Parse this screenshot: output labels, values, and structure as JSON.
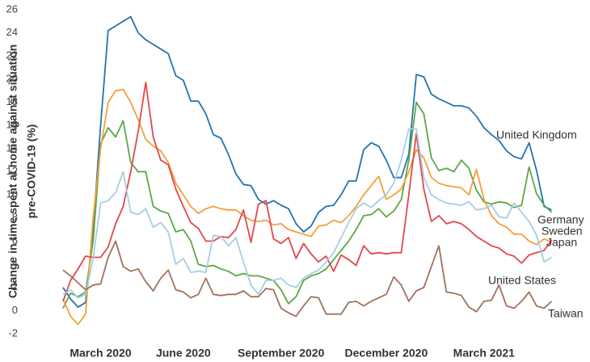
{
  "chart_data": {
    "type": "line",
    "y_label": [
      "Change in time spent at home against situation",
      "pre-COVID-19 (%)"
    ],
    "categories": [
      null,
      null,
      null,
      null,
      null,
      "March 2020",
      null,
      null,
      null,
      null,
      null,
      null,
      null,
      null,
      null,
      null,
      "June 2020",
      null,
      null,
      null,
      null,
      null,
      null,
      null,
      null,
      null,
      null,
      null,
      null,
      "September 2020",
      null,
      null,
      null,
      null,
      null,
      null,
      null,
      null,
      null,
      null,
      null,
      null,
      null,
      "December 2020",
      null,
      null,
      null,
      null,
      null,
      null,
      null,
      null,
      null,
      null,
      null,
      null,
      "March 2021",
      null,
      null,
      null,
      null,
      null,
      null,
      null,
      null,
      null
    ],
    "ylim": [
      -2.6,
      26.4
    ],
    "yticks": [
      -2,
      0,
      2,
      4,
      6,
      8,
      10,
      12,
      14,
      16,
      18,
      20,
      22,
      24,
      26
    ],
    "grid": false,
    "series": [
      {
        "name": "United Kingdom",
        "color": "#2474b0",
        "values": [
          2.0,
          1.0,
          0.3,
          0.7,
          7,
          16,
          24.2,
          24.6,
          25.0,
          25.4,
          24,
          23.4,
          23,
          22.6,
          22.2,
          20.3,
          19.9,
          18.1,
          18.1,
          17,
          15.2,
          14.9,
          13.5,
          11.8,
          10.9,
          10.8,
          9.6,
          9.2,
          9.5,
          9.1,
          8.8,
          7.5,
          6.8,
          7.3,
          8.5,
          9,
          9.1,
          10,
          11.2,
          11.2,
          13.9,
          14.5,
          14.2,
          13,
          11.5,
          11.5,
          13.5,
          20.4,
          20.2,
          18.7,
          18.3,
          18,
          17.7,
          17.7,
          17.5,
          16.8,
          15.8,
          15.2,
          14.7,
          13.8,
          13.3,
          13.1,
          14.5,
          12.1,
          9,
          8.7
        ]
      },
      {
        "name": "Germany",
        "color": "#5aa846",
        "values": [
          0.2,
          1.5,
          1.2,
          1.6,
          6,
          14.4,
          15.8,
          15,
          16.4,
          12.8,
          12,
          12,
          9,
          8.6,
          8.4,
          6.8,
          7,
          6,
          4,
          3.8,
          3.9,
          3.6,
          3.4,
          3,
          3.2,
          3,
          3,
          2.8,
          2.6,
          1.8,
          0.6,
          1.2,
          2.6,
          3,
          3.2,
          3.6,
          4.4,
          5.2,
          6,
          7,
          8.2,
          8.3,
          8.8,
          8.1,
          8.6,
          9.6,
          13,
          18,
          17,
          13.2,
          12.1,
          12.3,
          12,
          13,
          12.3,
          10.4,
          9.4,
          9.2,
          9.4,
          9.3,
          8.9,
          9.1,
          12.4,
          10.1,
          9.1,
          8.5
        ]
      },
      {
        "name": "Sweden",
        "color": "#f59f3a",
        "values": [
          1,
          -0.5,
          -1.2,
          -0.3,
          8,
          14,
          18,
          19,
          19.1,
          18,
          16.5,
          14.8,
          14.2,
          13.8,
          12.8,
          11,
          10,
          9,
          8.4,
          8.8,
          9,
          8.8,
          8.7,
          8.7,
          8.2,
          7.8,
          7.7,
          7.8,
          7.4,
          7.5,
          7,
          6.8,
          6.6,
          6.4,
          7.3,
          7.4,
          7.8,
          7.6,
          8.2,
          9,
          10,
          10.8,
          11.6,
          9.6,
          10,
          10.5,
          12,
          13.9,
          13.2,
          11.5,
          11,
          10.8,
          10.7,
          10.6,
          10,
          12.2,
          9.6,
          8.2,
          7.5,
          7.2,
          6.6,
          6.6,
          6,
          5.7,
          6.2,
          5.9
        ]
      },
      {
        "name": "Japan",
        "color": "#e2474a",
        "values": [
          0.8,
          2.6,
          3.6,
          4.7,
          4.6,
          4.6,
          5.5,
          7.5,
          9,
          12,
          15.5,
          19.7,
          15,
          13,
          12.6,
          10.5,
          9,
          7.6,
          7.1,
          6,
          6,
          6.4,
          6.3,
          7,
          8.7,
          5.9,
          9.2,
          9.5,
          6.2,
          5.8,
          6.3,
          4.5,
          5.8,
          4.9,
          4.2,
          4.7,
          3.4,
          4.8,
          4.4,
          3.9,
          5.6,
          4.9,
          5,
          4.9,
          5,
          5,
          10,
          15.3,
          10.5,
          7.7,
          8.2,
          7.5,
          7.7,
          7.5,
          7,
          6.4,
          6,
          5.6,
          5.4,
          4.9,
          4.7,
          4.1,
          4.8,
          5,
          5.2,
          6.1
        ]
      },
      {
        "name": "United States",
        "color": "#a7cde6",
        "values": [
          1.4,
          1.8,
          1.1,
          1.4,
          4.5,
          9.3,
          9.5,
          10.2,
          12,
          8.5,
          8.3,
          8.8,
          7.2,
          7.6,
          6.8,
          4,
          4.5,
          3.3,
          3.4,
          3.3,
          6.5,
          6.4,
          5.6,
          6.3,
          4.2,
          2.2,
          1.4,
          2.6,
          2.6,
          2.8,
          2.2,
          2,
          2.8,
          3.2,
          3.5,
          4.2,
          5,
          6.3,
          7.6,
          8.8,
          9.3,
          8.9,
          9.5,
          10,
          11,
          13,
          15.7,
          15.7,
          11.5,
          10,
          9.6,
          9.3,
          9.2,
          9.1,
          9.4,
          8.7,
          8.8,
          9.1,
          8.1,
          8,
          9.3,
          8.5,
          7.7,
          6.5,
          4.2,
          4.6
        ]
      },
      {
        "name": "Taiwan",
        "color": "#a0725a",
        "values": [
          3.5,
          3,
          2.4,
          1.8,
          2.2,
          2.3,
          4.6,
          6,
          3.8,
          3.4,
          3.6,
          2.5,
          1.7,
          2.8,
          3.5,
          1.8,
          1.6,
          1.1,
          1.4,
          2.8,
          1.4,
          1.3,
          1.4,
          1.4,
          1.7,
          1.2,
          1.2,
          1.9,
          1.8,
          0.2,
          -0.2,
          -0.5,
          0.4,
          1.2,
          1.1,
          -0.3,
          -0.3,
          -0.3,
          0.7,
          0.8,
          0.4,
          0.8,
          1.1,
          1.4,
          2.9,
          2.2,
          0.8,
          1.7,
          2,
          3.8,
          5.6,
          1.6,
          1.5,
          1.3,
          0.3,
          -0.1,
          0.8,
          0.9,
          2.2,
          0.4,
          0.2,
          0.8,
          1.6,
          0.4,
          0.2,
          0.8
        ]
      }
    ]
  }
}
